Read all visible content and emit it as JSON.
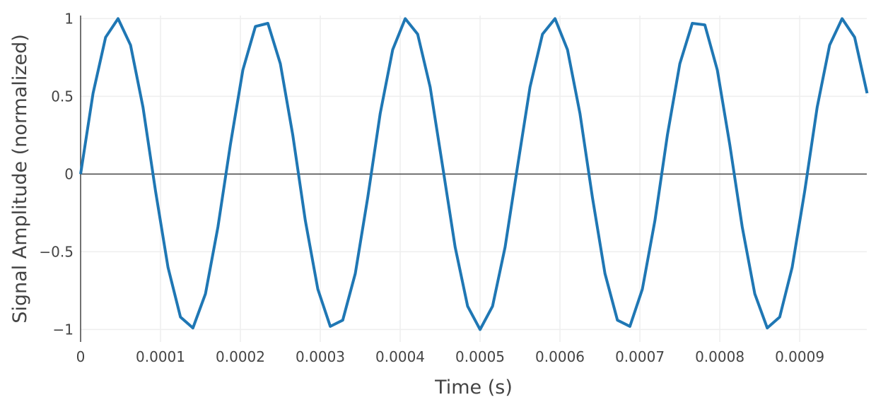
{
  "chart_data": {
    "type": "line",
    "title": "",
    "xlabel": "Time (s)",
    "ylabel": "Signal Amplitude (normalized)",
    "xlim": [
      0,
      0.000984
    ],
    "ylim": [
      -1.08,
      1.02
    ],
    "x_ticks": [
      {
        "value": 0,
        "label": "0"
      },
      {
        "value": 0.0001,
        "label": "0.0001"
      },
      {
        "value": 0.0002,
        "label": "0.0002"
      },
      {
        "value": 0.0003,
        "label": "0.0003"
      },
      {
        "value": 0.0004,
        "label": "0.0004"
      },
      {
        "value": 0.0005,
        "label": "0.0005"
      },
      {
        "value": 0.0006,
        "label": "0.0006"
      },
      {
        "value": 0.0007,
        "label": "0.0007"
      },
      {
        "value": 0.0008,
        "label": "0.0008"
      },
      {
        "value": 0.0009,
        "label": "0.0009"
      }
    ],
    "y_ticks": [
      {
        "value": 1,
        "label": "1"
      },
      {
        "value": 0.5,
        "label": "0.5"
      },
      {
        "value": 0,
        "label": "0"
      },
      {
        "value": -0.5,
        "label": "−0.5"
      },
      {
        "value": -1,
        "label": "−1"
      }
    ],
    "grid": true,
    "legend": "none",
    "series": [
      {
        "color": "#1f77b4",
        "x": [
          0,
          1.56e-05,
          3.13e-05,
          4.69e-05,
          6.25e-05,
          7.81e-05,
          9.38e-05,
          0.0001094,
          0.000125,
          0.0001406,
          0.0001563,
          0.0001719,
          0.0001875,
          0.0002031,
          0.0002188,
          0.0002344,
          0.00025,
          0.0002656,
          0.0002813,
          0.0002969,
          0.0003125,
          0.0003281,
          0.0003438,
          0.0003594,
          0.000375,
          0.0003906,
          0.0004063,
          0.0004219,
          0.0004375,
          0.0004531,
          0.0004688,
          0.0004844,
          0.0005,
          0.0005156,
          0.0005313,
          0.0005469,
          0.0005625,
          0.0005781,
          0.0005938,
          0.0006094,
          0.000625,
          0.0006406,
          0.0006563,
          0.0006719,
          0.0006875,
          0.0007031,
          0.0007188,
          0.0007344,
          0.00075,
          0.0007656,
          0.0007813,
          0.0007969,
          0.0008125,
          0.0008281,
          0.0008438,
          0.0008594,
          0.000875,
          0.0008906,
          0.0009063,
          0.0009219,
          0.0009375,
          0.0009531,
          0.0009688,
          0.0009844
        ],
        "y": [
          0,
          0.52,
          0.88,
          1.0,
          0.83,
          0.43,
          -0.11,
          -0.6,
          -0.92,
          -0.99,
          -0.77,
          -0.34,
          0.19,
          0.67,
          0.95,
          0.97,
          0.71,
          0.25,
          -0.3,
          -0.74,
          -0.98,
          -0.94,
          -0.64,
          -0.15,
          0.39,
          0.8,
          1.0,
          0.9,
          0.56,
          0.05,
          -0.47,
          -0.85,
          -1.0,
          -0.85,
          -0.47,
          0.05,
          0.56,
          0.9,
          1.0,
          0.8,
          0.39,
          -0.15,
          -0.64,
          -0.94,
          -0.98,
          -0.74,
          -0.3,
          0.25,
          0.71,
          0.97,
          0.96,
          0.67,
          0.19,
          -0.34,
          -0.77,
          -0.99,
          -0.92,
          -0.6,
          -0.11,
          0.43,
          0.83,
          1.0,
          0.88,
          0.52
        ]
      }
    ]
  }
}
